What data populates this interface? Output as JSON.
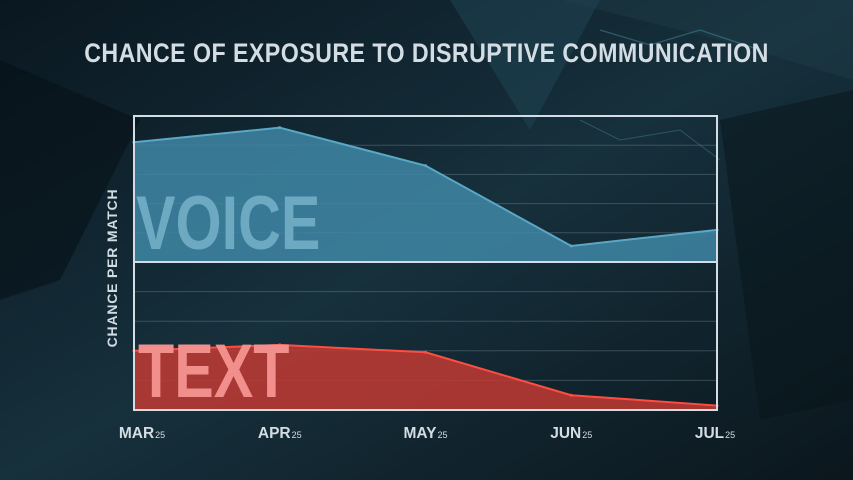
{
  "chart_data": {
    "type": "area",
    "title": "CHANCE OF EXPOSURE TO DISRUPTIVE COMMUNICATION",
    "ylabel": "CHANCE PER MATCH",
    "xlabel": "",
    "categories": [
      {
        "month": "MAR",
        "year": "25"
      },
      {
        "month": "APR",
        "year": "25"
      },
      {
        "month": "MAY",
        "year": "25"
      },
      {
        "month": "JUN",
        "year": "25"
      },
      {
        "month": "JUL",
        "year": "25"
      }
    ],
    "series": [
      {
        "name": "VOICE",
        "values": [
          0.82,
          0.92,
          0.66,
          0.11,
          0.22
        ],
        "color": "#3f87a6",
        "line_color": "#5aa7c6"
      },
      {
        "name": "TEXT",
        "values": [
          0.4,
          0.44,
          0.39,
          0.1,
          0.03
        ],
        "color": "#c23a33",
        "line_color": "#ff4d42"
      }
    ],
    "ylim": [
      0,
      1
    ],
    "y_tick_labels": "none",
    "grid": true,
    "panels": "stacked: VOICE on top, TEXT on bottom"
  },
  "colors": {
    "background": "#0d1c26",
    "frame": "#d4dde3",
    "title": "#d4dde3"
  }
}
